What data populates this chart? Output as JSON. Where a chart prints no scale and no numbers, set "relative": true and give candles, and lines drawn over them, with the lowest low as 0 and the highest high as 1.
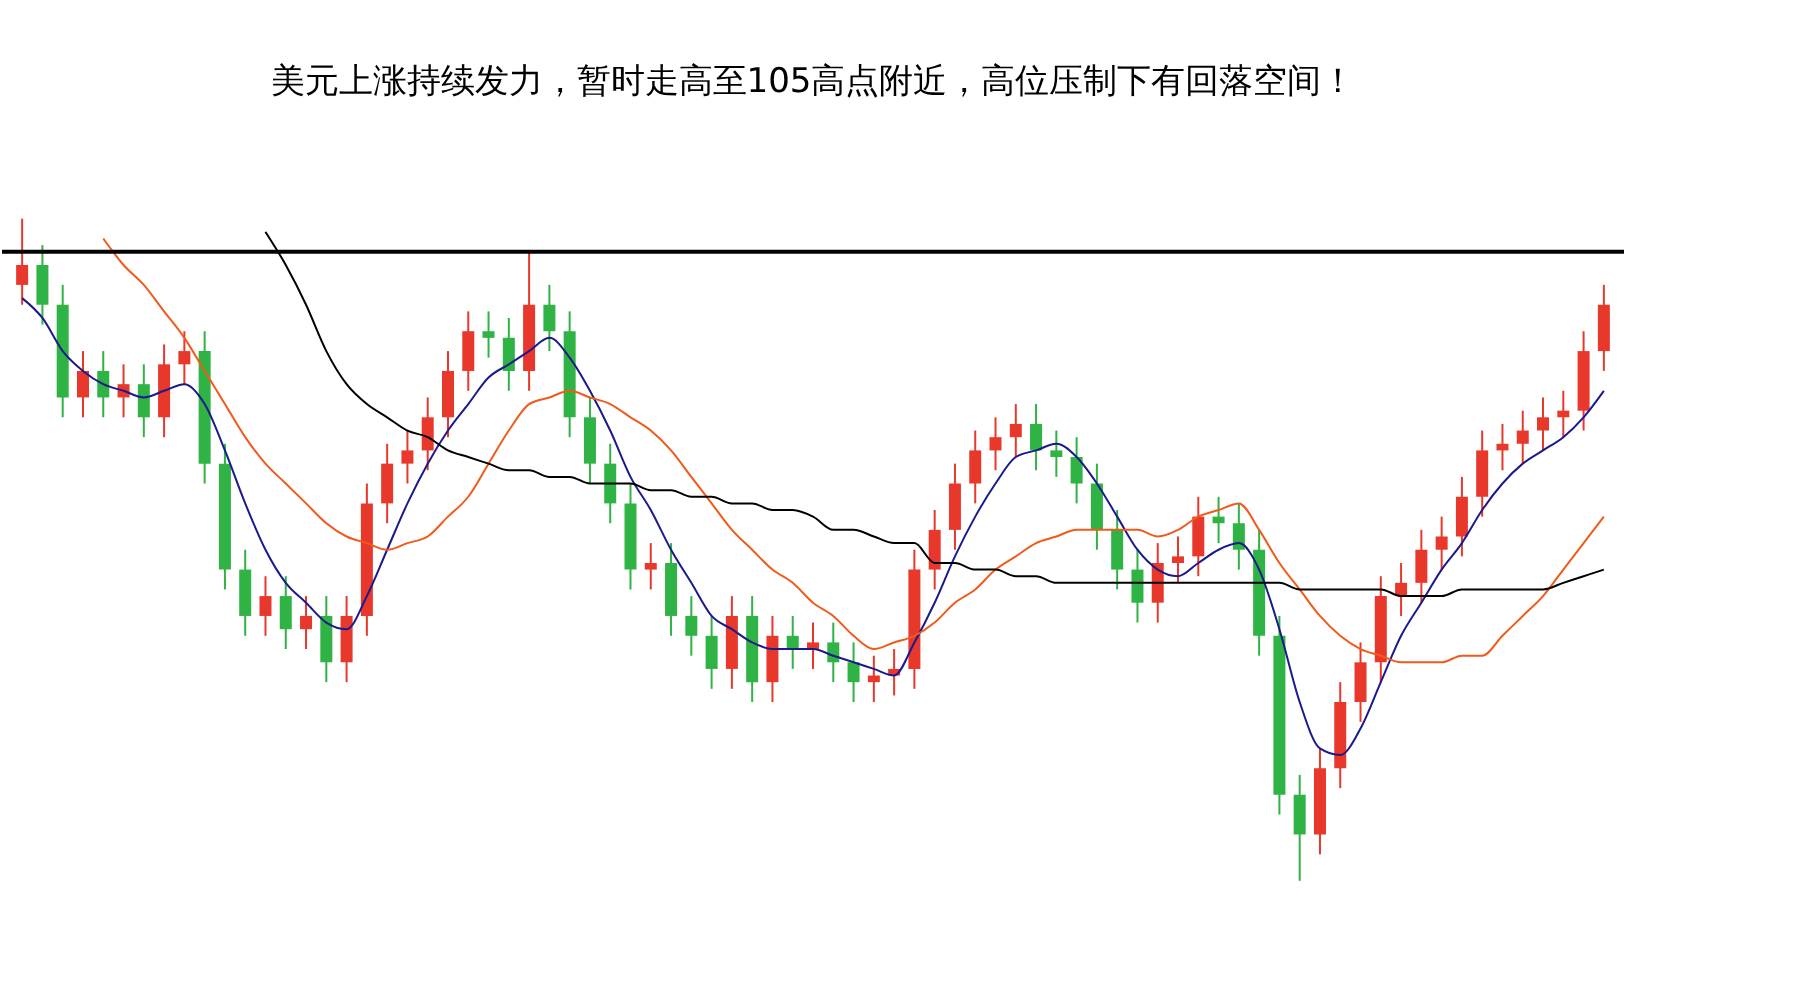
{
  "chart_data": {
    "type": "candlestick",
    "title": "美元上涨持续发力，暂时走高至105高点附近，高位压制下有回落空间！",
    "relative": true,
    "categories": [
      null,
      null,
      null,
      null,
      null,
      null,
      null,
      null,
      null,
      null,
      null,
      null,
      null,
      null,
      null,
      null,
      null,
      null,
      null,
      null,
      null,
      null,
      null,
      null,
      null,
      null,
      null,
      null,
      null,
      null,
      null,
      null,
      null,
      null,
      null,
      null,
      null,
      null,
      null,
      null,
      null,
      null,
      null,
      null,
      null,
      null,
      null,
      null,
      null,
      null,
      null,
      null,
      null,
      null,
      null,
      null,
      null,
      null,
      null,
      null,
      null,
      null,
      null,
      null,
      null,
      null,
      null,
      null,
      null,
      null,
      null,
      null,
      null,
      null,
      null,
      null,
      null,
      null,
      null
    ],
    "ohlc": [
      [
        0.9,
        1.0,
        0.87,
        0.93
      ],
      [
        0.93,
        0.96,
        0.84,
        0.87
      ],
      [
        0.87,
        0.9,
        0.7,
        0.73
      ],
      [
        0.73,
        0.8,
        0.7,
        0.77
      ],
      [
        0.77,
        0.8,
        0.7,
        0.73
      ],
      [
        0.73,
        0.78,
        0.7,
        0.75
      ],
      [
        0.75,
        0.78,
        0.67,
        0.7
      ],
      [
        0.7,
        0.81,
        0.67,
        0.78
      ],
      [
        0.78,
        0.83,
        0.75,
        0.8
      ],
      [
        0.8,
        0.83,
        0.6,
        0.63
      ],
      [
        0.63,
        0.66,
        0.44,
        0.47
      ],
      [
        0.47,
        0.5,
        0.37,
        0.4
      ],
      [
        0.4,
        0.46,
        0.37,
        0.43
      ],
      [
        0.43,
        0.46,
        0.35,
        0.38
      ],
      [
        0.38,
        0.43,
        0.35,
        0.4
      ],
      [
        0.4,
        0.43,
        0.3,
        0.33
      ],
      [
        0.33,
        0.43,
        0.3,
        0.4
      ],
      [
        0.4,
        0.6,
        0.37,
        0.57
      ],
      [
        0.57,
        0.66,
        0.54,
        0.63
      ],
      [
        0.63,
        0.68,
        0.6,
        0.65
      ],
      [
        0.65,
        0.73,
        0.62,
        0.7
      ],
      [
        0.7,
        0.8,
        0.67,
        0.77
      ],
      [
        0.77,
        0.86,
        0.74,
        0.83
      ],
      [
        0.83,
        0.86,
        0.79,
        0.82
      ],
      [
        0.82,
        0.85,
        0.74,
        0.77
      ],
      [
        0.77,
        0.95,
        0.74,
        0.87
      ],
      [
        0.87,
        0.9,
        0.8,
        0.83
      ],
      [
        0.83,
        0.86,
        0.67,
        0.7
      ],
      [
        0.7,
        0.73,
        0.6,
        0.63
      ],
      [
        0.63,
        0.66,
        0.54,
        0.57
      ],
      [
        0.57,
        0.6,
        0.44,
        0.47
      ],
      [
        0.47,
        0.51,
        0.44,
        0.48
      ],
      [
        0.48,
        0.51,
        0.37,
        0.4
      ],
      [
        0.4,
        0.43,
        0.34,
        0.37
      ],
      [
        0.37,
        0.4,
        0.29,
        0.32
      ],
      [
        0.32,
        0.43,
        0.29,
        0.4
      ],
      [
        0.4,
        0.43,
        0.27,
        0.3
      ],
      [
        0.3,
        0.4,
        0.27,
        0.37
      ],
      [
        0.37,
        0.4,
        0.32,
        0.35
      ],
      [
        0.35,
        0.39,
        0.32,
        0.36
      ],
      [
        0.36,
        0.39,
        0.3,
        0.33
      ],
      [
        0.33,
        0.36,
        0.27,
        0.3
      ],
      [
        0.3,
        0.34,
        0.27,
        0.31
      ],
      [
        0.31,
        0.35,
        0.28,
        0.32
      ],
      [
        0.32,
        0.5,
        0.29,
        0.47
      ],
      [
        0.47,
        0.56,
        0.44,
        0.53
      ],
      [
        0.53,
        0.63,
        0.5,
        0.6
      ],
      [
        0.6,
        0.68,
        0.57,
        0.65
      ],
      [
        0.65,
        0.7,
        0.62,
        0.67
      ],
      [
        0.67,
        0.72,
        0.64,
        0.69
      ],
      [
        0.69,
        0.72,
        0.62,
        0.65
      ],
      [
        0.65,
        0.68,
        0.61,
        0.64
      ],
      [
        0.64,
        0.67,
        0.57,
        0.6
      ],
      [
        0.6,
        0.63,
        0.5,
        0.53
      ],
      [
        0.53,
        0.56,
        0.44,
        0.47
      ],
      [
        0.47,
        0.5,
        0.39,
        0.42
      ],
      [
        0.42,
        0.51,
        0.39,
        0.48
      ],
      [
        0.48,
        0.52,
        0.45,
        0.49
      ],
      [
        0.49,
        0.58,
        0.46,
        0.55
      ],
      [
        0.55,
        0.58,
        0.51,
        0.54
      ],
      [
        0.54,
        0.57,
        0.47,
        0.5
      ],
      [
        0.5,
        0.53,
        0.34,
        0.37
      ],
      [
        0.37,
        0.4,
        0.1,
        0.13
      ],
      [
        0.13,
        0.16,
        0.0,
        0.07
      ],
      [
        0.07,
        0.2,
        0.04,
        0.17
      ],
      [
        0.17,
        0.3,
        0.14,
        0.27
      ],
      [
        0.27,
        0.36,
        0.24,
        0.33
      ],
      [
        0.33,
        0.46,
        0.3,
        0.43
      ],
      [
        0.43,
        0.48,
        0.4,
        0.45
      ],
      [
        0.45,
        0.53,
        0.42,
        0.5
      ],
      [
        0.5,
        0.55,
        0.47,
        0.52
      ],
      [
        0.52,
        0.61,
        0.49,
        0.58
      ],
      [
        0.58,
        0.68,
        0.55,
        0.65
      ],
      [
        0.65,
        0.69,
        0.62,
        0.66
      ],
      [
        0.66,
        0.71,
        0.63,
        0.68
      ],
      [
        0.68,
        0.73,
        0.65,
        0.7
      ],
      [
        0.7,
        0.74,
        0.67,
        0.71
      ],
      [
        0.71,
        0.83,
        0.68,
        0.8
      ],
      [
        0.8,
        0.9,
        0.77,
        0.87
      ]
    ],
    "colors": [
      "#e8382c",
      "#2fb344",
      "#2fb344",
      "#e8382c",
      "#2fb344",
      "#e8382c",
      "#2fb344",
      "#e8382c",
      "#e8382c",
      "#2fb344",
      "#2fb344",
      "#2fb344",
      "#e8382c",
      "#2fb344",
      "#e8382c",
      "#2fb344",
      "#e8382c",
      "#e8382c",
      "#e8382c",
      "#e8382c",
      "#e8382c",
      "#e8382c",
      "#e8382c",
      "#2fb344",
      "#2fb344",
      "#e8382c",
      "#2fb344",
      "#2fb344",
      "#2fb344",
      "#2fb344",
      "#2fb344",
      "#e8382c",
      "#2fb344",
      "#2fb344",
      "#2fb344",
      "#e8382c",
      "#2fb344",
      "#e8382c",
      "#2fb344",
      "#e8382c",
      "#2fb344",
      "#2fb344",
      "#e8382c",
      "#e8382c",
      "#e8382c",
      "#e8382c",
      "#e8382c",
      "#e8382c",
      "#e8382c",
      "#e8382c",
      "#2fb344",
      "#2fb344",
      "#2fb344",
      "#2fb344",
      "#2fb344",
      "#2fb344",
      "#e8382c",
      "#e8382c",
      "#e8382c",
      "#2fb344",
      "#2fb344",
      "#2fb344",
      "#2fb344",
      "#2fb344",
      "#e8382c",
      "#e8382c",
      "#e8382c",
      "#e8382c",
      "#e8382c",
      "#e8382c",
      "#e8382c",
      "#e8382c",
      "#e8382c",
      "#e8382c",
      "#e8382c",
      "#e8382c",
      "#e8382c",
      "#e8382c",
      "#e8382c"
    ],
    "series": [
      {
        "type": "line",
        "color": "#1a1a8c",
        "values": [
          0.88,
          0.85,
          0.8,
          0.77,
          0.75,
          0.74,
          0.73,
          0.74,
          0.75,
          0.72,
          0.65,
          0.57,
          0.5,
          0.45,
          0.42,
          0.39,
          0.38,
          0.43,
          0.5,
          0.57,
          0.63,
          0.68,
          0.72,
          0.76,
          0.78,
          0.8,
          0.82,
          0.79,
          0.74,
          0.68,
          0.61,
          0.56,
          0.5,
          0.45,
          0.4,
          0.38,
          0.36,
          0.35,
          0.35,
          0.35,
          0.34,
          0.33,
          0.32,
          0.31,
          0.36,
          0.42,
          0.49,
          0.55,
          0.6,
          0.64,
          0.65,
          0.66,
          0.64,
          0.6,
          0.55,
          0.5,
          0.47,
          0.46,
          0.48,
          0.5,
          0.51,
          0.47,
          0.38,
          0.27,
          0.2,
          0.19,
          0.23,
          0.3,
          0.37,
          0.42,
          0.47,
          0.51,
          0.56,
          0.6,
          0.63,
          0.65,
          0.67,
          0.7,
          0.74
        ]
      },
      {
        "type": "line",
        "color": "#f05a1a",
        "values": [
          null,
          null,
          null,
          null,
          0.97,
          0.93,
          0.9,
          0.86,
          0.82,
          0.77,
          0.72,
          0.67,
          0.63,
          0.6,
          0.57,
          0.54,
          0.52,
          0.51,
          0.5,
          0.51,
          0.52,
          0.55,
          0.58,
          0.63,
          0.68,
          0.72,
          0.73,
          0.74,
          0.73,
          0.72,
          0.7,
          0.68,
          0.65,
          0.61,
          0.57,
          0.53,
          0.5,
          0.47,
          0.45,
          0.42,
          0.4,
          0.37,
          0.35,
          0.36,
          0.37,
          0.39,
          0.42,
          0.44,
          0.47,
          0.49,
          0.51,
          0.52,
          0.53,
          0.53,
          0.53,
          0.53,
          0.52,
          0.53,
          0.55,
          0.56,
          0.57,
          0.53,
          0.48,
          0.44,
          0.4,
          0.37,
          0.35,
          0.34,
          0.33,
          0.33,
          0.33,
          0.34,
          0.34,
          0.37,
          0.4,
          0.43,
          0.47,
          0.51,
          0.55
        ]
      },
      {
        "type": "line",
        "color": "#000000",
        "values": [
          null,
          null,
          null,
          null,
          null,
          null,
          null,
          null,
          null,
          null,
          null,
          null,
          0.98,
          0.93,
          0.87,
          0.8,
          0.75,
          0.72,
          0.7,
          0.68,
          0.67,
          0.65,
          0.64,
          0.63,
          0.62,
          0.62,
          0.61,
          0.61,
          0.6,
          0.6,
          0.6,
          0.59,
          0.59,
          0.58,
          0.58,
          0.57,
          0.57,
          0.56,
          0.56,
          0.55,
          0.53,
          0.53,
          0.52,
          0.51,
          0.51,
          0.48,
          0.48,
          0.47,
          0.47,
          0.46,
          0.46,
          0.45,
          0.45,
          0.45,
          0.45,
          0.45,
          0.45,
          0.45,
          0.45,
          0.45,
          0.45,
          0.45,
          0.45,
          0.44,
          0.44,
          0.44,
          0.44,
          0.44,
          0.43,
          0.43,
          0.43,
          0.44,
          0.44,
          0.44,
          0.44,
          0.44,
          0.45,
          0.46,
          0.47
        ]
      }
    ],
    "ref_lines": [
      {
        "axis": "y",
        "value": 0.95,
        "color": "#000000",
        "line_style": "solid"
      }
    ]
  }
}
